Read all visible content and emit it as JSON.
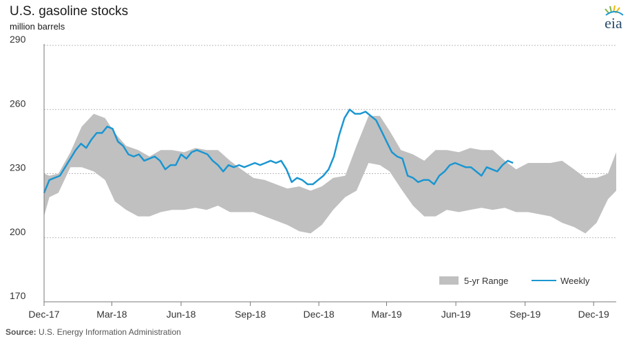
{
  "header": {
    "title": "U.S. gasoline stocks",
    "subtitle": "million barrels",
    "logo_text": "eia"
  },
  "source": {
    "label": "Source:",
    "text": "U.S. Energy Information Administration"
  },
  "colors": {
    "range_fill": "#c0c0c0",
    "weekly_line": "#1a96d1",
    "grid": "#b8b8b8",
    "axis": "#777777",
    "logo_green": "#7cb342",
    "logo_blue": "#1a96d1"
  },
  "chart_data": {
    "type": "area",
    "title": "U.S. gasoline stocks",
    "ylabel": "million barrels",
    "ylim": [
      170,
      290
    ],
    "yticks": [
      170,
      200,
      230,
      260,
      290
    ],
    "xlim": [
      "2017-12-01",
      "2019-12-31"
    ],
    "xticks": [
      "Dec-17",
      "Mar-18",
      "Jun-18",
      "Sep-18",
      "Dec-18",
      "Mar-19",
      "Jun-19",
      "Sep-19",
      "Dec-19"
    ],
    "xtick_dates": [
      "2017-12-01",
      "2018-03-01",
      "2018-06-01",
      "2018-09-01",
      "2018-12-01",
      "2019-03-01",
      "2019-06-01",
      "2019-09-01",
      "2019-12-01"
    ],
    "grid": "horizontal",
    "legend": {
      "position": "bottom-right",
      "range_label": "5-yr Range",
      "weekly_label": "Weekly"
    },
    "range": {
      "name": "5-yr Range",
      "dates": [
        "2017-12-01",
        "2017-12-08",
        "2017-12-20",
        "2018-01-05",
        "2018-01-20",
        "2018-02-05",
        "2018-02-20",
        "2018-03-05",
        "2018-03-20",
        "2018-04-05",
        "2018-04-20",
        "2018-05-05",
        "2018-05-20",
        "2018-06-05",
        "2018-06-20",
        "2018-07-05",
        "2018-07-20",
        "2018-08-05",
        "2018-08-20",
        "2018-09-05",
        "2018-09-20",
        "2018-10-05",
        "2018-10-20",
        "2018-11-05",
        "2018-11-20",
        "2018-12-05",
        "2018-12-20",
        "2019-01-05",
        "2019-01-20",
        "2019-02-05",
        "2019-02-20",
        "2019-03-05",
        "2019-03-20",
        "2019-04-05",
        "2019-04-20",
        "2019-05-05",
        "2019-05-20",
        "2019-06-05",
        "2019-06-20",
        "2019-07-05",
        "2019-07-20",
        "2019-08-05",
        "2019-08-20",
        "2019-09-05",
        "2019-09-20",
        "2019-10-05",
        "2019-10-20",
        "2019-11-05",
        "2019-11-20",
        "2019-12-05",
        "2019-12-20",
        "2019-12-31"
      ],
      "high": [
        230,
        229,
        230,
        240,
        252,
        258,
        256,
        249,
        243,
        241,
        238,
        241,
        241,
        240,
        242,
        241,
        241,
        236,
        232,
        228,
        227,
        225,
        223,
        224,
        222,
        224,
        228,
        229,
        243,
        257,
        257,
        250,
        241,
        239,
        236,
        241,
        241,
        240,
        242,
        241,
        241,
        236,
        232,
        235,
        235,
        235,
        236,
        232,
        228,
        228,
        230,
        240
      ],
      "low": [
        210,
        219,
        221,
        233,
        233,
        231,
        227,
        217,
        213,
        210,
        210,
        212,
        213,
        213,
        214,
        213,
        215,
        212,
        212,
        212,
        210,
        208,
        206,
        203,
        202,
        206,
        213,
        219,
        222,
        235,
        234,
        231,
        223,
        215,
        210,
        210,
        213,
        212,
        213,
        214,
        213,
        214,
        212,
        212,
        211,
        210,
        207,
        205,
        202,
        207,
        218,
        222
      ]
    },
    "series": [
      {
        "name": "Weekly",
        "dates": [
          "2017-12-01",
          "2017-12-08",
          "2017-12-15",
          "2017-12-22",
          "2017-12-29",
          "2018-01-05",
          "2018-01-12",
          "2018-01-19",
          "2018-01-26",
          "2018-02-02",
          "2018-02-09",
          "2018-02-16",
          "2018-02-23",
          "2018-03-02",
          "2018-03-09",
          "2018-03-16",
          "2018-03-23",
          "2018-03-30",
          "2018-04-06",
          "2018-04-13",
          "2018-04-20",
          "2018-04-27",
          "2018-05-04",
          "2018-05-11",
          "2018-05-18",
          "2018-05-25",
          "2018-06-01",
          "2018-06-08",
          "2018-06-15",
          "2018-06-22",
          "2018-06-29",
          "2018-07-06",
          "2018-07-13",
          "2018-07-20",
          "2018-07-27",
          "2018-08-03",
          "2018-08-10",
          "2018-08-17",
          "2018-08-24",
          "2018-08-31",
          "2018-09-07",
          "2018-09-14",
          "2018-09-21",
          "2018-09-28",
          "2018-10-05",
          "2018-10-12",
          "2018-10-19",
          "2018-10-26",
          "2018-11-02",
          "2018-11-09",
          "2018-11-16",
          "2018-11-23",
          "2018-11-30",
          "2018-12-07",
          "2018-12-14",
          "2018-12-21",
          "2018-12-28",
          "2019-01-04",
          "2019-01-11",
          "2019-01-18",
          "2019-01-25",
          "2019-02-01",
          "2019-02-08",
          "2019-02-15",
          "2019-02-22",
          "2019-03-01",
          "2019-03-08",
          "2019-03-15",
          "2019-03-22",
          "2019-03-29",
          "2019-04-05",
          "2019-04-12",
          "2019-04-19",
          "2019-04-26",
          "2019-05-03",
          "2019-05-10",
          "2019-05-17",
          "2019-05-24",
          "2019-05-31",
          "2019-06-07",
          "2019-06-14",
          "2019-06-21",
          "2019-06-28",
          "2019-07-05",
          "2019-07-12",
          "2019-07-19",
          "2019-07-26",
          "2019-08-02",
          "2019-08-09",
          "2019-08-16"
        ],
        "values": [
          221,
          227,
          228,
          229,
          233,
          237,
          241,
          244,
          242,
          246,
          249,
          249,
          252,
          251,
          245,
          243,
          239,
          238,
          239,
          236,
          237,
          238,
          236,
          232,
          234,
          234,
          239,
          237,
          240,
          241,
          240,
          239,
          236,
          234,
          231,
          234,
          233,
          234,
          233,
          234,
          235,
          234,
          235,
          236,
          235,
          236,
          232,
          226,
          228,
          227,
          225,
          225,
          227,
          229,
          232,
          238,
          248,
          256,
          260,
          258,
          258,
          259,
          257,
          255,
          250,
          245,
          240,
          238,
          237,
          229,
          228,
          226,
          227,
          227,
          225,
          229,
          231,
          234,
          235,
          234,
          233,
          233,
          231,
          229,
          233,
          232,
          231,
          234,
          236,
          235
        ]
      }
    ]
  }
}
